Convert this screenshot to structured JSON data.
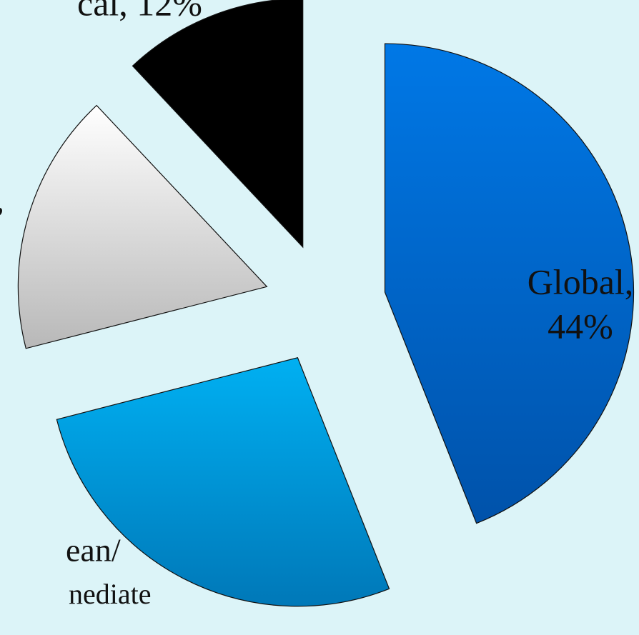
{
  "chart_data": {
    "type": "pie",
    "values": [
      44,
      27,
      17,
      12
    ],
    "colors": [
      [
        "#0078e6",
        "#0052aa"
      ],
      [
        "#00b0f2",
        "#0078b8"
      ],
      [
        "#ffffff",
        "#b8b8b8"
      ],
      [
        "#000000",
        "#000000"
      ]
    ],
    "value_labels": [
      [
        "Global,",
        "44%"
      ],
      [
        "ean/",
        "nediate"
      ],
      [
        ","
      ],
      [
        "cal, 12%"
      ]
    ],
    "start_angle": 0,
    "exploded": true
  }
}
